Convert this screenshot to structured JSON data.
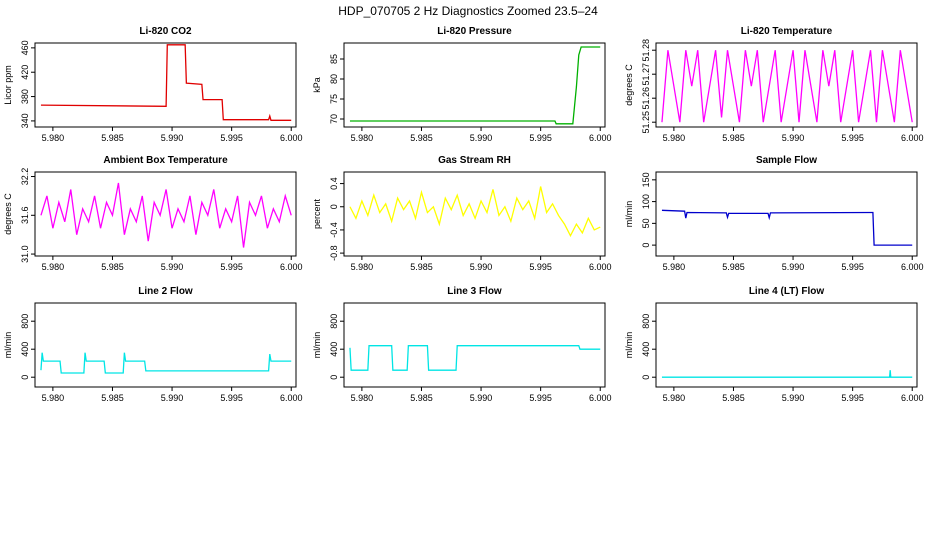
{
  "title": "HDP_070705  2 Hz Diagnostics Zoomed 23.5–24",
  "chart_data": [
    {
      "type": "line",
      "title": "Li-820 CO2",
      "y_label": "Licor ppm",
      "color": "#e00000",
      "x": [
        5.979,
        5.9895,
        5.9896,
        5.9911,
        5.9912,
        5.9925,
        5.9926,
        5.9942,
        5.9943,
        5.9981,
        5.9982,
        5.9983,
        6.0
      ],
      "values": [
        366,
        364,
        465,
        465,
        402,
        400,
        375,
        375,
        342,
        342,
        348,
        341,
        341
      ],
      "xlim": [
        5.9785,
        6.0004
      ],
      "xticks": [
        {
          "value": 5.98,
          "label": "5.980"
        },
        {
          "value": 5.985,
          "label": "5.985"
        },
        {
          "value": 5.99,
          "label": "5.990"
        },
        {
          "value": 5.995,
          "label": "5.995"
        },
        {
          "value": 6.0,
          "label": "6.000"
        }
      ],
      "ylim": [
        330,
        468
      ],
      "yticks": [
        340,
        380,
        420,
        460
      ]
    },
    {
      "type": "line",
      "title": "Li-820 Pressure",
      "y_label": "kPa",
      "color": "#00b000",
      "x": [
        5.979,
        5.9962,
        5.9963,
        5.9977,
        5.998,
        5.9982,
        5.9984,
        6.0
      ],
      "values": [
        69.5,
        69.5,
        68.8,
        68.8,
        78,
        86,
        88,
        88
      ],
      "xlim": [
        5.9785,
        6.0004
      ],
      "xticks": [
        {
          "value": 5.98,
          "label": "5.980"
        },
        {
          "value": 5.985,
          "label": "5.985"
        },
        {
          "value": 5.99,
          "label": "5.990"
        },
        {
          "value": 5.995,
          "label": "5.995"
        },
        {
          "value": 6.0,
          "label": "6.000"
        }
      ],
      "ylim": [
        68,
        89
      ],
      "yticks": [
        70,
        75,
        80,
        85
      ]
    },
    {
      "type": "line",
      "title": "Li-820 Temperature",
      "y_label": "degrees C",
      "color": "#ff00ff",
      "x": [
        5.979,
        5.9795,
        5.98,
        5.9805,
        5.981,
        5.9815,
        5.982,
        5.9825,
        5.983,
        5.9835,
        5.984,
        5.9845,
        5.985,
        5.9855,
        5.986,
        5.9865,
        5.987,
        5.9875,
        5.988,
        5.9885,
        5.989,
        5.9895,
        5.99,
        5.9905,
        5.991,
        5.9915,
        5.992,
        5.9925,
        5.993,
        5.9935,
        5.994,
        5.9945,
        5.995,
        5.9955,
        5.996,
        5.9965,
        5.997,
        5.9975,
        5.998,
        5.9985,
        5.999,
        5.9995,
        6.0
      ],
      "values": [
        51.25,
        51.28,
        51.265,
        51.25,
        51.28,
        51.265,
        51.28,
        51.25,
        51.265,
        51.28,
        51.252,
        51.28,
        51.265,
        51.25,
        51.28,
        51.265,
        51.28,
        51.25,
        51.265,
        51.28,
        51.25,
        51.265,
        51.28,
        51.25,
        51.28,
        51.265,
        51.25,
        51.28,
        51.265,
        51.28,
        51.25,
        51.265,
        51.28,
        51.25,
        51.265,
        51.28,
        51.25,
        51.28,
        51.265,
        51.25,
        51.28,
        51.265,
        51.25
      ],
      "xlim": [
        5.9785,
        6.0004
      ],
      "xticks": [
        {
          "value": 5.98,
          "label": "5.980"
        },
        {
          "value": 5.985,
          "label": "5.985"
        },
        {
          "value": 5.99,
          "label": "5.990"
        },
        {
          "value": 5.995,
          "label": "5.995"
        },
        {
          "value": 6.0,
          "label": "6.000"
        }
      ],
      "ylim": [
        51.248,
        51.283
      ],
      "yticks": [
        51.25,
        51.26,
        51.27,
        51.28
      ]
    },
    {
      "type": "line",
      "title": "Ambient Box Temperature",
      "y_label": "degrees C",
      "color": "#ff00ff",
      "x": [
        5.979,
        5.9795,
        5.98,
        5.9805,
        5.981,
        5.9815,
        5.982,
        5.9825,
        5.983,
        5.9835,
        5.984,
        5.9845,
        5.985,
        5.9855,
        5.986,
        5.9865,
        5.987,
        5.9875,
        5.988,
        5.9885,
        5.989,
        5.9895,
        5.99,
        5.9905,
        5.991,
        5.9915,
        5.992,
        5.9925,
        5.993,
        5.9935,
        5.994,
        5.9945,
        5.995,
        5.9955,
        5.996,
        5.9965,
        5.997,
        5.9975,
        5.998,
        5.9985,
        5.999,
        5.9995,
        6.0
      ],
      "values": [
        31.6,
        31.9,
        31.4,
        31.8,
        31.5,
        32.0,
        31.3,
        31.7,
        31.5,
        31.9,
        31.4,
        31.8,
        31.6,
        32.1,
        31.3,
        31.7,
        31.5,
        31.9,
        31.2,
        31.8,
        31.6,
        32.0,
        31.4,
        31.7,
        31.5,
        31.9,
        31.3,
        31.8,
        31.6,
        32.0,
        31.4,
        31.7,
        31.5,
        31.9,
        31.1,
        31.8,
        31.6,
        31.9,
        31.4,
        31.7,
        31.5,
        31.9,
        31.6
      ],
      "xlim": [
        5.9785,
        6.0004
      ],
      "xticks": [
        {
          "value": 5.98,
          "label": "5.980"
        },
        {
          "value": 5.985,
          "label": "5.985"
        },
        {
          "value": 5.99,
          "label": "5.990"
        },
        {
          "value": 5.995,
          "label": "5.995"
        },
        {
          "value": 6.0,
          "label": "6.000"
        }
      ],
      "ylim": [
        30.97,
        32.27
      ],
      "yticks": [
        {
          "value": 31,
          "label": "31.0"
        },
        31.6,
        32.2
      ]
    },
    {
      "type": "line",
      "title": "Gas Stream RH",
      "y_label": "percent",
      "color": "#ffff00",
      "x": [
        5.979,
        5.9795,
        5.98,
        5.9805,
        5.981,
        5.9815,
        5.982,
        5.9825,
        5.983,
        5.9835,
        5.984,
        5.9845,
        5.985,
        5.9855,
        5.986,
        5.9865,
        5.987,
        5.9875,
        5.988,
        5.9885,
        5.989,
        5.9895,
        5.99,
        5.9905,
        5.991,
        5.9915,
        5.992,
        5.9925,
        5.993,
        5.9935,
        5.994,
        5.9945,
        5.995,
        5.9955,
        5.996,
        5.9965,
        5.997,
        5.9975,
        5.998,
        5.9985,
        5.999,
        5.9995,
        6.0
      ],
      "values": [
        0.0,
        -0.2,
        0.1,
        -0.15,
        0.2,
        -0.1,
        0.05,
        -0.25,
        0.15,
        -0.05,
        0.1,
        -0.2,
        0.25,
        -0.1,
        0.0,
        -0.3,
        0.15,
        -0.05,
        0.2,
        -0.15,
        0.05,
        -0.2,
        0.1,
        -0.1,
        0.3,
        -0.15,
        0.0,
        -0.25,
        0.15,
        -0.05,
        0.1,
        -0.2,
        0.35,
        -0.1,
        0.05,
        -0.15,
        -0.3,
        -0.5,
        -0.3,
        -0.45,
        -0.2,
        -0.4,
        -0.35
      ],
      "xlim": [
        5.9785,
        6.0004
      ],
      "xticks": [
        {
          "value": 5.98,
          "label": "5.980"
        },
        {
          "value": 5.985,
          "label": "5.985"
        },
        {
          "value": 5.99,
          "label": "5.990"
        },
        {
          "value": 5.995,
          "label": "5.995"
        },
        {
          "value": 6.0,
          "label": "6.000"
        }
      ],
      "ylim": [
        -0.85,
        0.6
      ],
      "yticks": [
        -0.8,
        -0.4,
        0,
        0.4
      ]
    },
    {
      "type": "line",
      "title": "Sample Flow",
      "y_label": "ml/min",
      "color": "#0000cc",
      "x": [
        5.979,
        5.9809,
        5.981,
        5.9811,
        5.9844,
        5.9845,
        5.9846,
        5.9879,
        5.988,
        5.9881,
        5.9966,
        5.9967,
        5.9968,
        6.0
      ],
      "values": [
        80,
        78,
        62,
        75,
        74,
        64,
        73,
        73,
        63,
        74,
        75,
        75,
        0,
        0
      ],
      "xlim": [
        5.9785,
        6.0004
      ],
      "xticks": [
        {
          "value": 5.98,
          "label": "5.980"
        },
        {
          "value": 5.985,
          "label": "5.985"
        },
        {
          "value": 5.99,
          "label": "5.990"
        },
        {
          "value": 5.995,
          "label": "5.995"
        },
        {
          "value": 6.0,
          "label": "6.000"
        }
      ],
      "ylim": [
        -25,
        168
      ],
      "yticks": [
        0,
        50,
        100,
        150
      ]
    },
    {
      "type": "line",
      "title": "Line 2 Flow",
      "y_label": "ml/min",
      "color": "#00e5e5",
      "x": [
        5.979,
        5.9791,
        5.9792,
        5.9806,
        5.9807,
        5.9826,
        5.9827,
        5.9828,
        5.9843,
        5.9844,
        5.9859,
        5.986,
        5.9861,
        5.9877,
        5.9878,
        5.9981,
        5.9982,
        5.9983,
        6.0
      ],
      "values": [
        100,
        350,
        230,
        230,
        60,
        60,
        350,
        230,
        230,
        60,
        60,
        350,
        230,
        230,
        90,
        90,
        330,
        230,
        230
      ],
      "xlim": [
        5.9785,
        6.0004
      ],
      "xticks": [
        {
          "value": 5.98,
          "label": "5.980"
        },
        {
          "value": 5.985,
          "label": "5.985"
        },
        {
          "value": 5.99,
          "label": "5.990"
        },
        {
          "value": 5.995,
          "label": "5.995"
        },
        {
          "value": 6.0,
          "label": "6.000"
        }
      ],
      "ylim": [
        -140,
        1060
      ],
      "yticks": [
        0,
        400,
        800
      ]
    },
    {
      "type": "line",
      "title": "Line 3 Flow",
      "y_label": "ml/min",
      "color": "#00e5e5",
      "x": [
        5.979,
        5.9791,
        5.9792,
        5.9805,
        5.9806,
        5.9825,
        5.9826,
        5.9838,
        5.9839,
        5.9855,
        5.9856,
        5.9867,
        5.9868,
        5.9879,
        5.988,
        5.9982,
        5.9983,
        6.0
      ],
      "values": [
        420,
        100,
        100,
        100,
        450,
        450,
        100,
        100,
        450,
        450,
        100,
        100,
        100,
        100,
        450,
        450,
        400,
        400
      ],
      "xlim": [
        5.9785,
        6.0004
      ],
      "xticks": [
        {
          "value": 5.98,
          "label": "5.980"
        },
        {
          "value": 5.985,
          "label": "5.985"
        },
        {
          "value": 5.99,
          "label": "5.990"
        },
        {
          "value": 5.995,
          "label": "5.995"
        },
        {
          "value": 6.0,
          "label": "6.000"
        }
      ],
      "ylim": [
        -140,
        1060
      ],
      "yticks": [
        0,
        400,
        800
      ]
    },
    {
      "type": "line",
      "title": "Line 4 (LT) Flow",
      "y_label": "ml/min",
      "color": "#00e5e5",
      "x": [
        5.979,
        5.9981,
        5.99815,
        5.9982,
        6.0
      ],
      "values": [
        0,
        0,
        100,
        0,
        0
      ],
      "xlim": [
        5.9785,
        6.0004
      ],
      "xticks": [
        {
          "value": 5.98,
          "label": "5.980"
        },
        {
          "value": 5.985,
          "label": "5.985"
        },
        {
          "value": 5.99,
          "label": "5.990"
        },
        {
          "value": 5.995,
          "label": "5.995"
        },
        {
          "value": 6.0,
          "label": "6.000"
        }
      ],
      "ylim": [
        -140,
        1060
      ],
      "yticks": [
        0,
        400,
        800
      ]
    }
  ]
}
